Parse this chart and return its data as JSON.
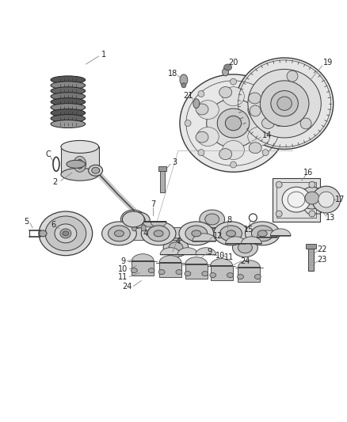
{
  "fig_width": 4.38,
  "fig_height": 5.33,
  "dpi": 100,
  "bg": "#ffffff",
  "line_color": "#3a3a3a",
  "label_color": "#222222",
  "leader_color": "#888888",
  "font_size": 7.0,
  "lw_main": 0.9,
  "lw_thin": 0.55,
  "parts_layout": "exploded_crankshaft"
}
